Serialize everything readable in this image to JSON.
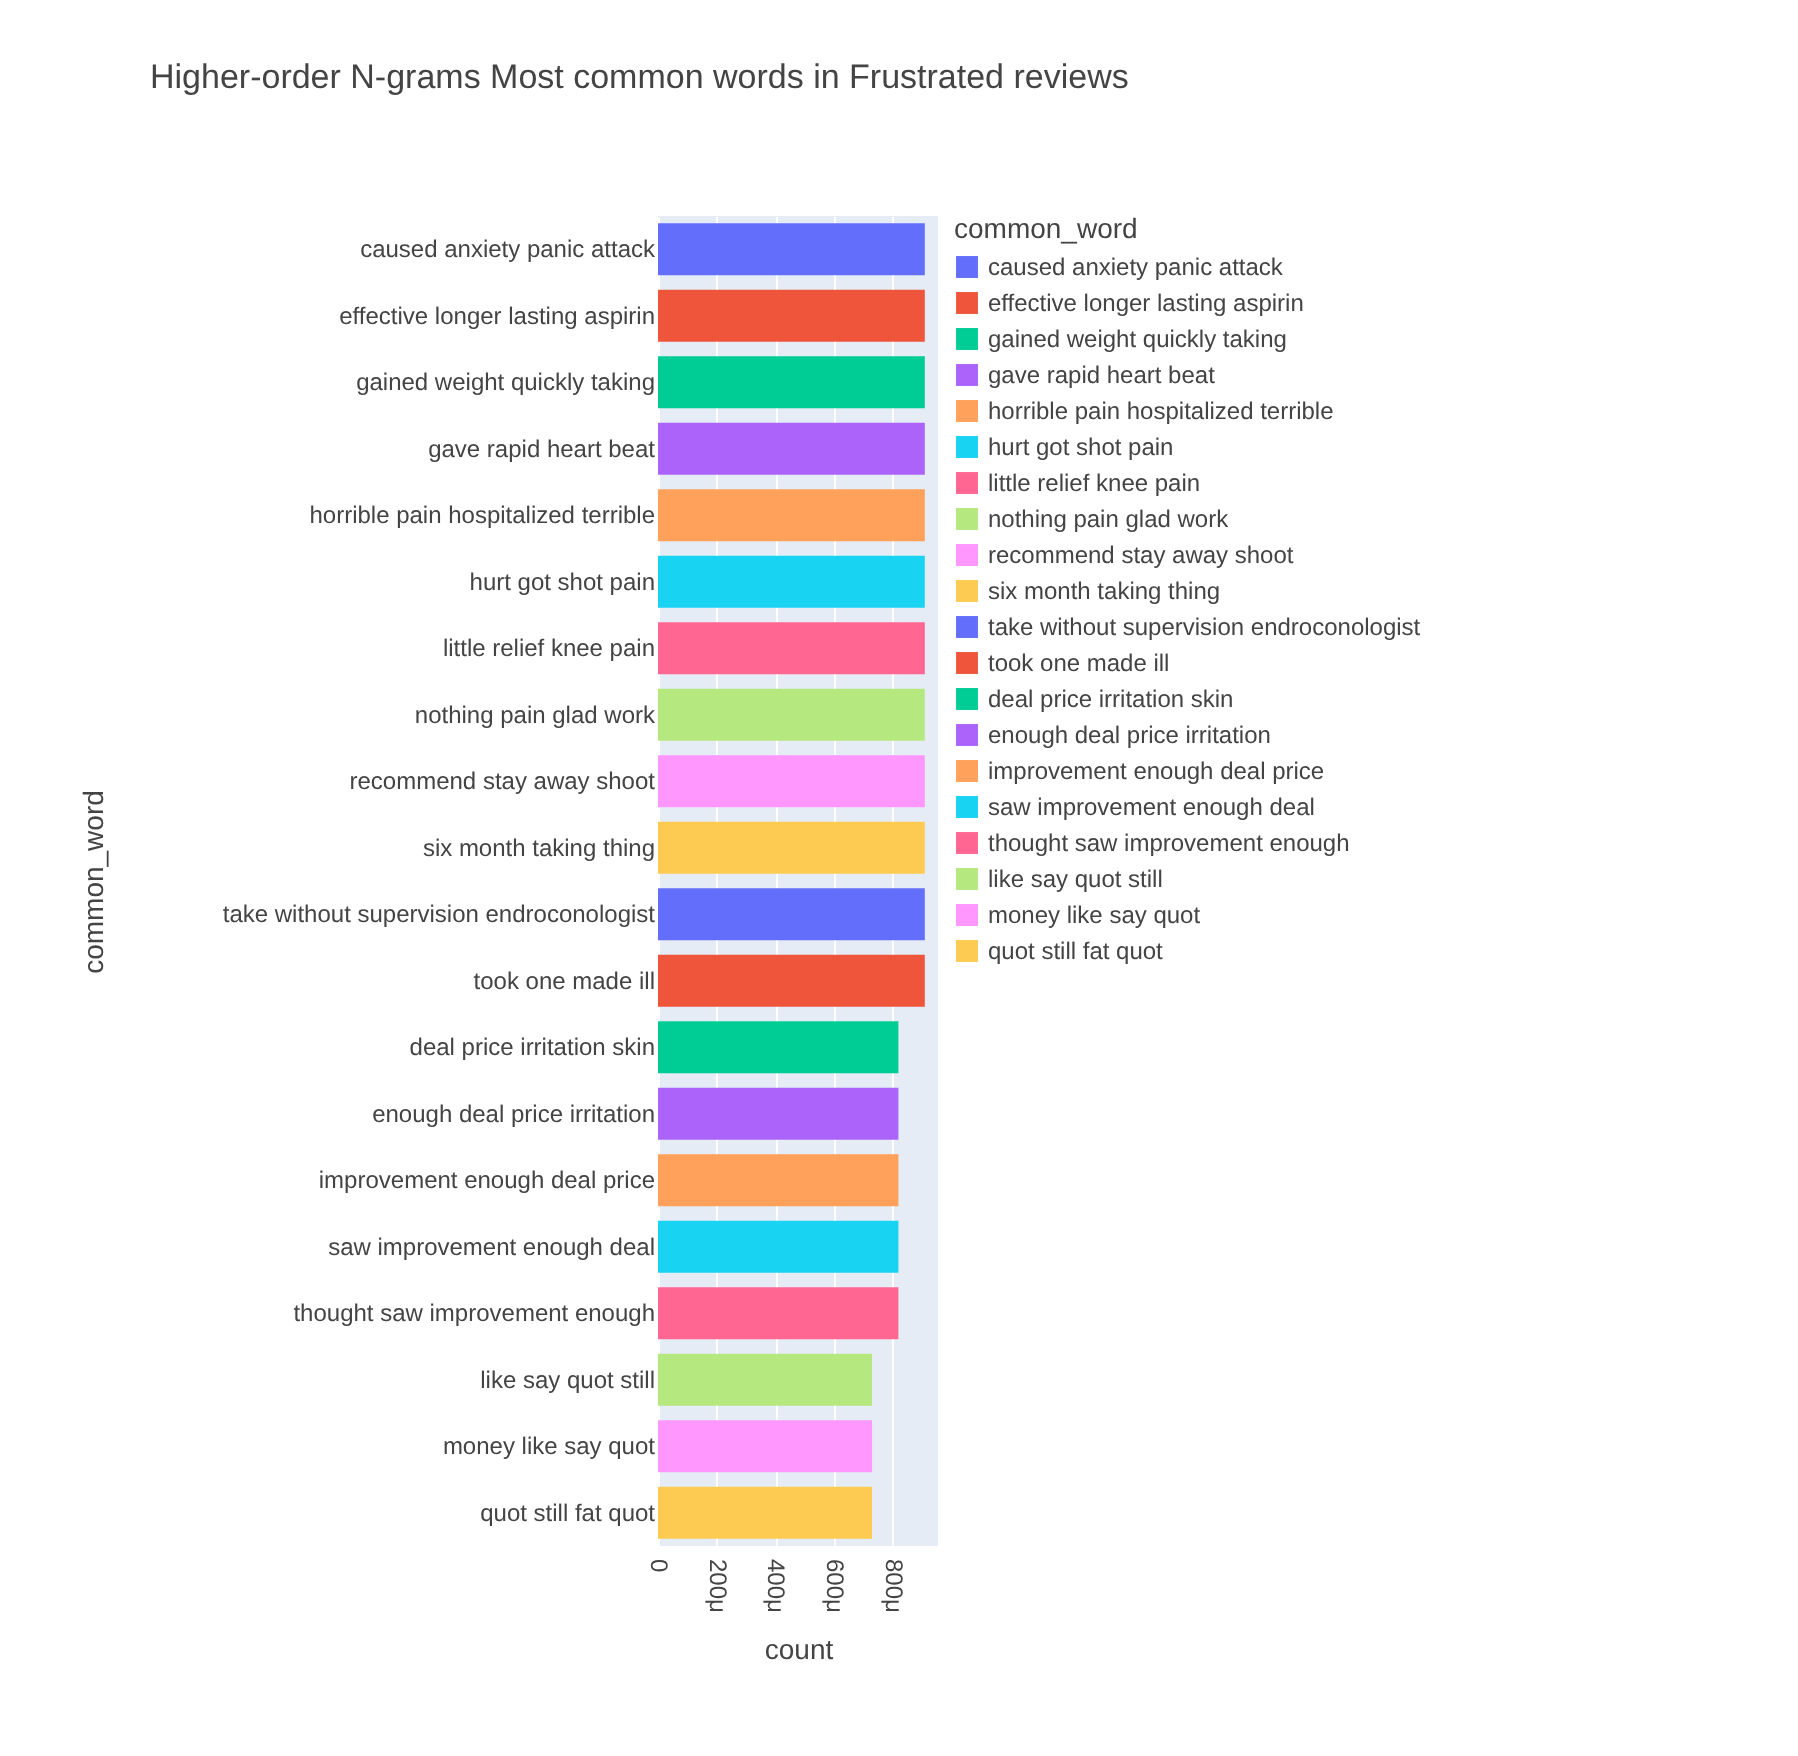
{
  "chart_data": {
    "type": "bar",
    "orientation": "horizontal",
    "title": "Higher-order N-grams Most common words in Frustrated reviews",
    "xlabel": "count",
    "ylabel": "common_word",
    "legend_title": "common_word",
    "legend": "right",
    "grid": "x",
    "categories": [
      "caused anxiety panic attack",
      "effective longer lasting aspirin",
      "gained weight quickly taking",
      "gave rapid heart beat",
      "horrible pain hospitalized terrible",
      "hurt got shot pain",
      "little relief knee pain",
      "nothing pain glad work",
      "recommend stay away shoot",
      "six month taking thing",
      "take without supervision endroconologist",
      "took one made ill",
      "deal price irritation skin",
      "enough deal price irritation",
      "improvement enough deal price",
      "saw improvement enough deal",
      "thought saw improvement enough",
      "like say quot still",
      "money like say quot",
      "quot still fat quot"
    ],
    "series": [
      {
        "name": "caused anxiety panic attack",
        "color": "#636efa",
        "values": [
          910,
          null,
          null,
          null,
          null,
          null,
          null,
          null,
          null,
          null,
          null,
          null,
          null,
          null,
          null,
          null,
          null,
          null,
          null,
          null
        ]
      },
      {
        "name": "effective longer lasting aspirin",
        "color": "#ef553b",
        "values": [
          null,
          910,
          null,
          null,
          null,
          null,
          null,
          null,
          null,
          null,
          null,
          null,
          null,
          null,
          null,
          null,
          null,
          null,
          null,
          null
        ]
      },
      {
        "name": "gained weight quickly taking",
        "color": "#00cc96",
        "values": [
          null,
          null,
          910,
          null,
          null,
          null,
          null,
          null,
          null,
          null,
          null,
          null,
          null,
          null,
          null,
          null,
          null,
          null,
          null,
          null
        ]
      },
      {
        "name": "gave rapid heart beat",
        "color": "#ab63fa",
        "values": [
          null,
          null,
          null,
          910,
          null,
          null,
          null,
          null,
          null,
          null,
          null,
          null,
          null,
          null,
          null,
          null,
          null,
          null,
          null,
          null
        ]
      },
      {
        "name": "horrible pain hospitalized terrible",
        "color": "#ffa15a",
        "values": [
          null,
          null,
          null,
          null,
          910,
          null,
          null,
          null,
          null,
          null,
          null,
          null,
          null,
          null,
          null,
          null,
          null,
          null,
          null,
          null
        ]
      },
      {
        "name": "hurt got shot pain",
        "color": "#19d3f3",
        "values": [
          null,
          null,
          null,
          null,
          null,
          910,
          null,
          null,
          null,
          null,
          null,
          null,
          null,
          null,
          null,
          null,
          null,
          null,
          null,
          null
        ]
      },
      {
        "name": "little relief knee pain",
        "color": "#ff6692",
        "values": [
          null,
          null,
          null,
          null,
          null,
          null,
          910,
          null,
          null,
          null,
          null,
          null,
          null,
          null,
          null,
          null,
          null,
          null,
          null,
          null
        ]
      },
      {
        "name": "nothing pain glad work",
        "color": "#b6e880",
        "values": [
          null,
          null,
          null,
          null,
          null,
          null,
          null,
          910,
          null,
          null,
          null,
          null,
          null,
          null,
          null,
          null,
          null,
          null,
          null,
          null
        ]
      },
      {
        "name": "recommend stay away shoot",
        "color": "#ff97ff",
        "values": [
          null,
          null,
          null,
          null,
          null,
          null,
          null,
          null,
          910,
          null,
          null,
          null,
          null,
          null,
          null,
          null,
          null,
          null,
          null,
          null
        ]
      },
      {
        "name": "six month taking thing",
        "color": "#fecb52",
        "values": [
          null,
          null,
          null,
          null,
          null,
          null,
          null,
          null,
          null,
          910,
          null,
          null,
          null,
          null,
          null,
          null,
          null,
          null,
          null,
          null
        ]
      },
      {
        "name": "take without supervision endroconologist",
        "color": "#636efa",
        "values": [
          null,
          null,
          null,
          null,
          null,
          null,
          null,
          null,
          null,
          null,
          910,
          null,
          null,
          null,
          null,
          null,
          null,
          null,
          null,
          null
        ]
      },
      {
        "name": "took one made ill",
        "color": "#ef553b",
        "values": [
          null,
          null,
          null,
          null,
          null,
          null,
          null,
          null,
          null,
          null,
          null,
          910,
          null,
          null,
          null,
          null,
          null,
          null,
          null,
          null
        ]
      },
      {
        "name": "deal price irritation skin",
        "color": "#00cc96",
        "values": [
          null,
          null,
          null,
          null,
          null,
          null,
          null,
          null,
          null,
          null,
          null,
          null,
          820,
          null,
          null,
          null,
          null,
          null,
          null,
          null
        ]
      },
      {
        "name": "enough deal price irritation",
        "color": "#ab63fa",
        "values": [
          null,
          null,
          null,
          null,
          null,
          null,
          null,
          null,
          null,
          null,
          null,
          null,
          null,
          820,
          null,
          null,
          null,
          null,
          null,
          null
        ]
      },
      {
        "name": "improvement enough deal price",
        "color": "#ffa15a",
        "values": [
          null,
          null,
          null,
          null,
          null,
          null,
          null,
          null,
          null,
          null,
          null,
          null,
          null,
          null,
          820,
          null,
          null,
          null,
          null,
          null
        ]
      },
      {
        "name": "saw improvement enough deal",
        "color": "#19d3f3",
        "values": [
          null,
          null,
          null,
          null,
          null,
          null,
          null,
          null,
          null,
          null,
          null,
          null,
          null,
          null,
          null,
          820,
          null,
          null,
          null,
          null
        ]
      },
      {
        "name": "thought saw improvement enough",
        "color": "#ff6692",
        "values": [
          null,
          null,
          null,
          null,
          null,
          null,
          null,
          null,
          null,
          null,
          null,
          null,
          null,
          null,
          null,
          null,
          820,
          null,
          null,
          null
        ]
      },
      {
        "name": "like say quot still",
        "color": "#b6e880",
        "values": [
          null,
          null,
          null,
          null,
          null,
          null,
          null,
          null,
          null,
          null,
          null,
          null,
          null,
          null,
          null,
          null,
          null,
          730,
          null,
          null
        ]
      },
      {
        "name": "money like say quot",
        "color": "#ff97ff",
        "values": [
          null,
          null,
          null,
          null,
          null,
          null,
          null,
          null,
          null,
          null,
          null,
          null,
          null,
          null,
          null,
          null,
          null,
          null,
          730,
          null
        ]
      },
      {
        "name": "quot still fat quot",
        "color": "#fecb52",
        "values": [
          null,
          null,
          null,
          null,
          null,
          null,
          null,
          null,
          null,
          null,
          null,
          null,
          null,
          null,
          null,
          null,
          null,
          null,
          null,
          730
        ]
      }
    ],
    "xlim": [
      0,
      955
    ],
    "xticks": [
      0,
      {
        "value": 200,
        "label": "200μ"
      },
      {
        "value": 400,
        "label": "400μ"
      },
      {
        "value": 600,
        "label": "600μ"
      },
      {
        "value": 800,
        "label": "800μ"
      }
    ]
  }
}
